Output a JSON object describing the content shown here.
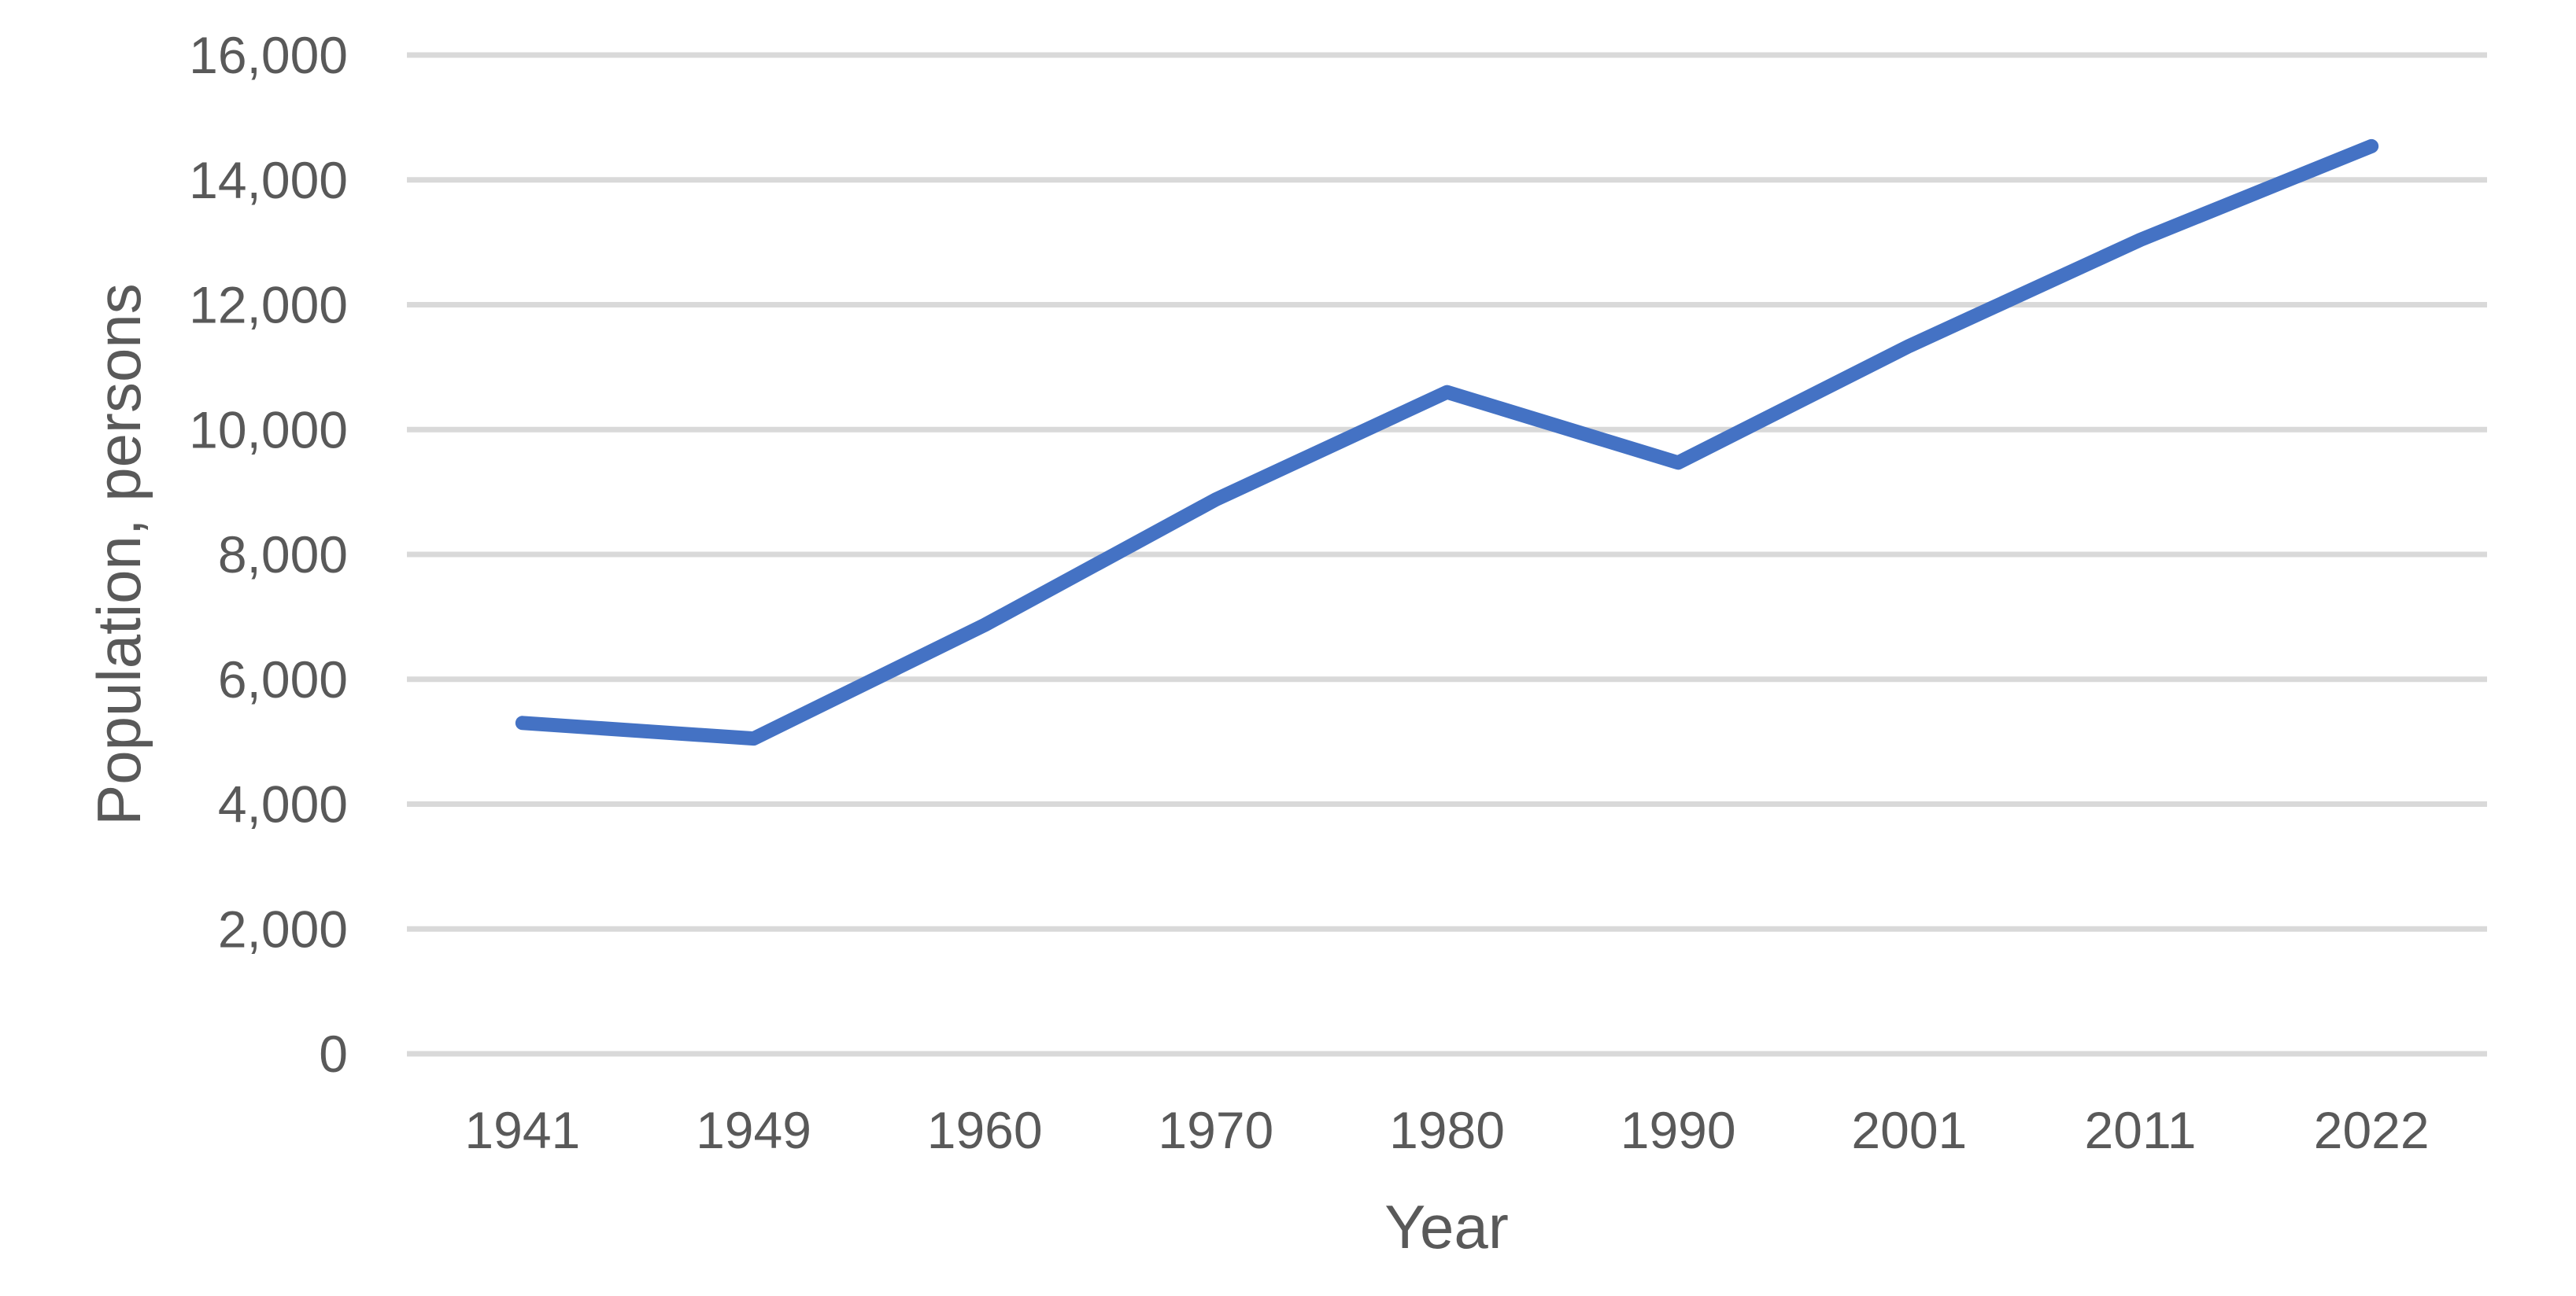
{
  "chart_data": {
    "type": "line",
    "title": "",
    "xlabel": "Year",
    "ylabel": "Population, persons",
    "categories": [
      "1941",
      "1949",
      "1960",
      "1970",
      "1980",
      "1990",
      "2001",
      "2011",
      "2022"
    ],
    "series": [
      {
        "name": "Population",
        "values": [
          5300,
          5050,
          6870,
          8880,
          10600,
          9470,
          11340,
          13040,
          14540
        ]
      }
    ],
    "ylim": [
      0,
      16000
    ],
    "y_tick_step": 2000,
    "y_tick_labels": [
      "0",
      "2,000",
      "4,000",
      "6,000",
      "8,000",
      "10,000",
      "12,000",
      "14,000",
      "16,000"
    ],
    "grid": "horizontal-only",
    "legend": "none",
    "line_color": "#4472C4",
    "gridline_color": "#D9D9D9",
    "text_color": "#595959",
    "background_color": "#FFFFFF"
  }
}
